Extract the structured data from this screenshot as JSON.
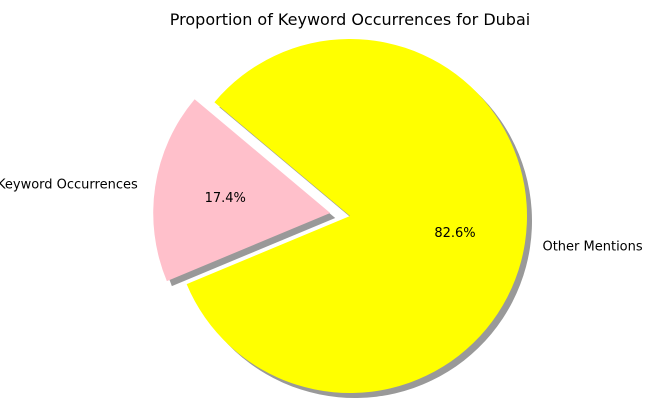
{
  "chart_data": {
    "type": "pie",
    "title": "Proportion of Keyword Occurrences for Dubai",
    "labels": [
      "Keyword Occurrences",
      "Other Mentions"
    ],
    "values": [
      17.4,
      82.6
    ],
    "percent_labels": [
      "17.4%",
      "82.6%"
    ],
    "colors": [
      "#ffc0cb",
      "#ffff00"
    ],
    "exploded": [
      true,
      false
    ],
    "shadow": true,
    "start_angle_deg": 140
  }
}
